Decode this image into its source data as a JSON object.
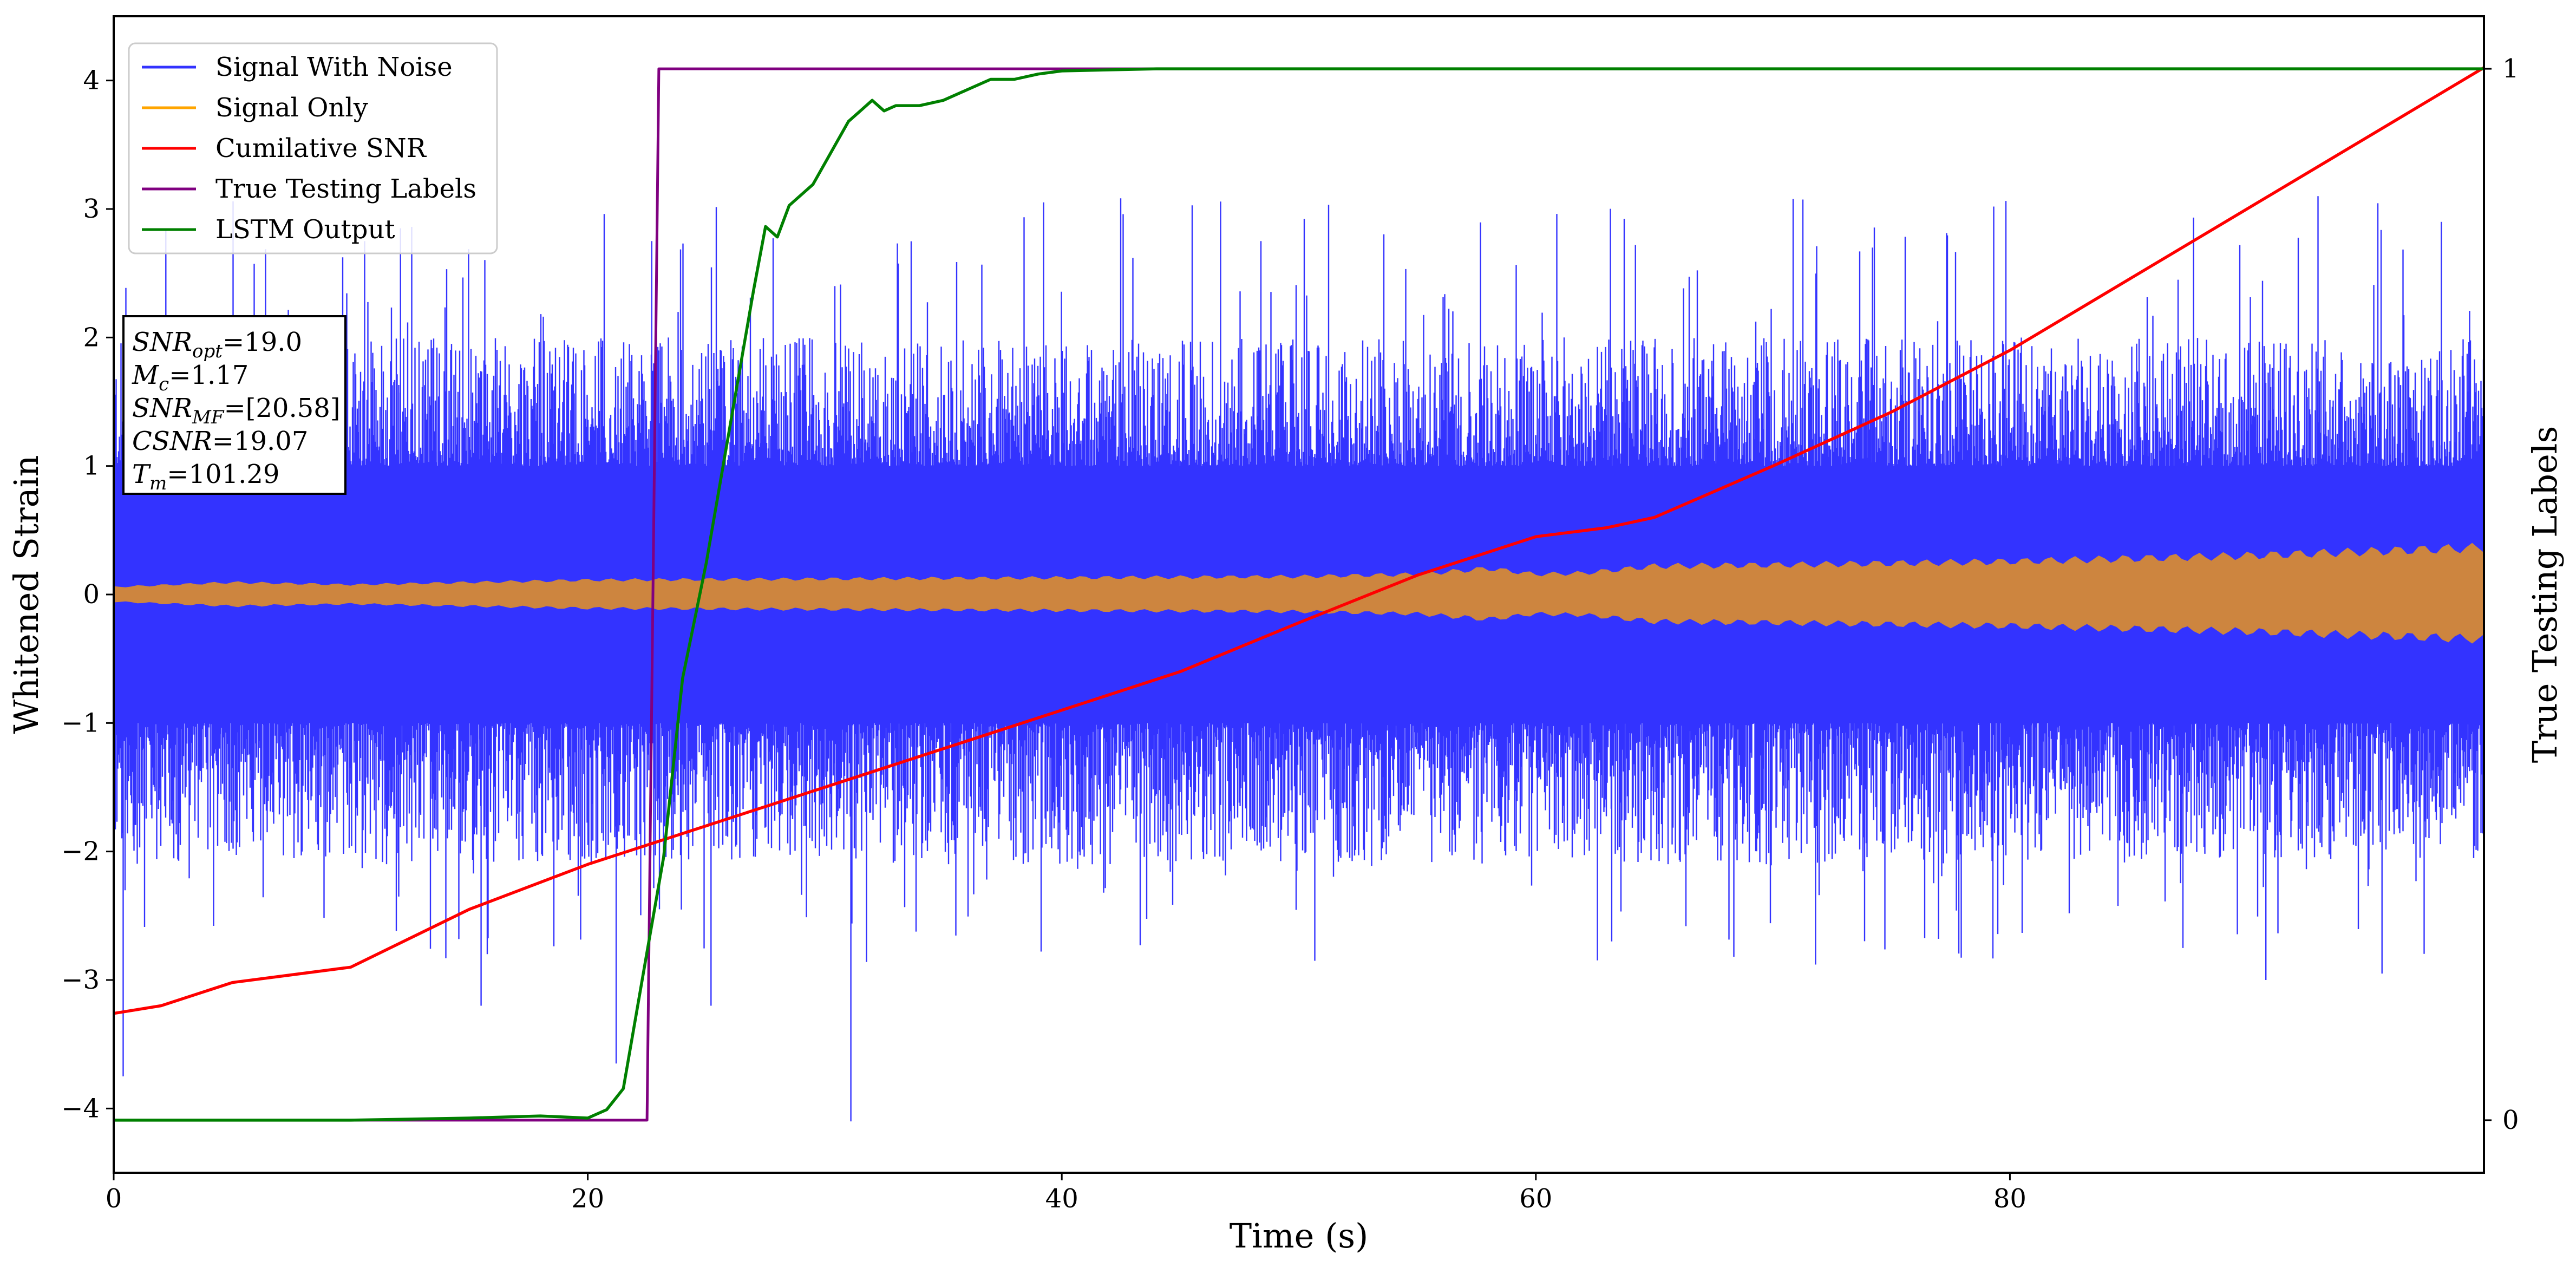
{
  "chart_data": {
    "type": "line",
    "xlabel": "Time (s)",
    "ylabel": "Whitened Strain",
    "y2label": "True Testing Labels",
    "xlim": [
      0,
      100
    ],
    "ylim": [
      -4.5,
      4.5
    ],
    "y2lim": [
      -0.05,
      1.05
    ],
    "xticks": [
      0,
      20,
      40,
      60,
      80
    ],
    "yticks": [
      -4,
      -3,
      -2,
      -1,
      0,
      1,
      2,
      3,
      4
    ],
    "y2ticks": [
      0,
      1
    ],
    "grid": false,
    "legend": {
      "placement": "top-left",
      "entries": [
        {
          "label": "Signal With Noise",
          "color": "#3333ff"
        },
        {
          "label": "Signal Only",
          "color": "#ffa500"
        },
        {
          "label": "Cumilative SNR",
          "color": "#ff0000"
        },
        {
          "label": "True Testing Labels",
          "color": "#800080"
        },
        {
          "label": "LSTM Output",
          "color": "#008000"
        }
      ]
    },
    "annotation": [
      {
        "main": "SNR",
        "sub": "opt",
        "rest": "=19.0"
      },
      {
        "main": "M",
        "sub": "c",
        "rest": "=1.17"
      },
      {
        "main": "SNR",
        "sub": "MF",
        "rest": "=[20.58]"
      },
      {
        "main": "CSNR",
        "sub": "",
        "rest": "=19.07"
      },
      {
        "main": "T",
        "sub": "m",
        "rest": "=101.29"
      }
    ],
    "series": [
      {
        "name": "Signal With Noise",
        "color": "#3333ff",
        "axis": "left",
        "noise_band": {
          "core": 1.0,
          "peak_max": 3.1,
          "peak_min": -4.1,
          "x_range": [
            0,
            100
          ]
        }
      },
      {
        "name": "Signal Only",
        "color": "#cd853f",
        "axis": "left",
        "amplitude_envelope": {
          "x": [
            0,
            5,
            10,
            20,
            30,
            40,
            50,
            55,
            58,
            60,
            62,
            65,
            70,
            80,
            90,
            100
          ],
          "amp": [
            0.06,
            0.1,
            0.08,
            0.12,
            0.13,
            0.14,
            0.15,
            0.17,
            0.22,
            0.17,
            0.18,
            0.24,
            0.25,
            0.28,
            0.33,
            0.4
          ]
        }
      },
      {
        "name": "Cumilative SNR",
        "color": "#ff0000",
        "axis": "left",
        "x": [
          0,
          2,
          5,
          10,
          15,
          20,
          25,
          30,
          35,
          40,
          45,
          50,
          55,
          60,
          63,
          65,
          70,
          75,
          80,
          85,
          90,
          95,
          100
        ],
        "y": [
          -3.26,
          -3.2,
          -3.02,
          -2.9,
          -2.45,
          -2.1,
          -1.8,
          -1.5,
          -1.2,
          -0.9,
          -0.6,
          -0.22,
          0.15,
          0.45,
          0.52,
          0.6,
          1.0,
          1.42,
          1.9,
          2.45,
          3.0,
          3.55,
          4.1
        ]
      },
      {
        "name": "True Testing Labels",
        "color": "#800080",
        "axis": "right",
        "x": [
          0,
          22.5,
          23.0,
          100
        ],
        "y": [
          0,
          0,
          1,
          1
        ]
      },
      {
        "name": "LSTM Output",
        "color": "#008000",
        "axis": "right",
        "x": [
          0,
          10,
          15,
          18,
          20,
          20.8,
          21.5,
          22.5,
          23.2,
          24,
          25,
          26,
          27,
          27.5,
          28,
          28.5,
          29.5,
          30,
          30.5,
          31,
          31.5,
          32,
          32.5,
          33,
          34,
          35,
          36,
          37,
          38,
          39,
          40,
          44,
          100
        ],
        "y": [
          0,
          0,
          0.002,
          0.004,
          0.002,
          0.01,
          0.03,
          0.16,
          0.25,
          0.42,
          0.53,
          0.66,
          0.79,
          0.85,
          0.84,
          0.87,
          0.89,
          0.91,
          0.93,
          0.95,
          0.96,
          0.97,
          0.96,
          0.965,
          0.965,
          0.97,
          0.98,
          0.99,
          0.99,
          0.995,
          0.998,
          1.0,
          1.0
        ]
      }
    ]
  }
}
